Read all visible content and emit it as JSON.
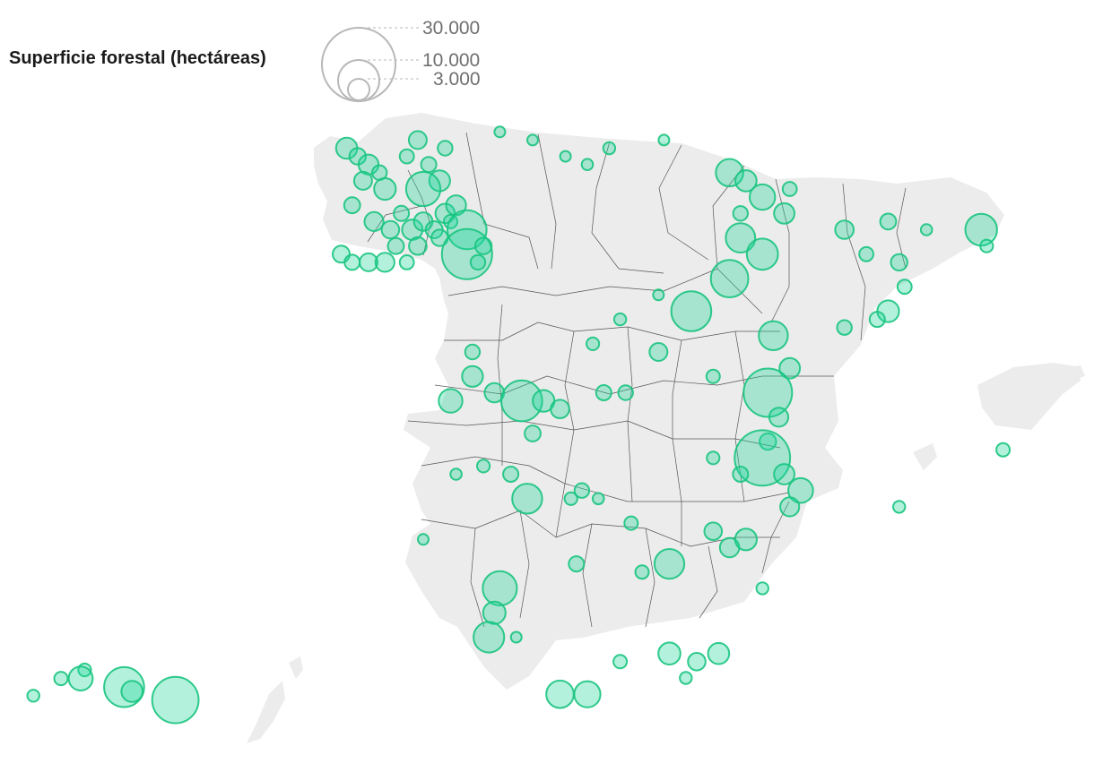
{
  "legend": {
    "title": "Superficie forestal (hectáreas)",
    "sizes": [
      {
        "value": 30000,
        "label": "30.000"
      },
      {
        "value": 10000,
        "label": "10.000"
      },
      {
        "value": 3000,
        "label": "3.000"
      }
    ]
  },
  "colors": {
    "bubble_fill": "#1fd69a",
    "bubble_stroke": "#19c47f",
    "land": "#ececec",
    "borders": "#555555"
  },
  "fires": [
    {
      "lon": -8.7,
      "lat": 43.3,
      "area": 2500
    },
    {
      "lon": -8.5,
      "lat": 43.2,
      "area": 1500
    },
    {
      "lon": -8.3,
      "lat": 43.1,
      "area": 2200
    },
    {
      "lon": -8.1,
      "lat": 43.0,
      "area": 1200
    },
    {
      "lon": -8.4,
      "lat": 42.9,
      "area": 1800
    },
    {
      "lon": -8.0,
      "lat": 42.8,
      "area": 2600
    },
    {
      "lon": -8.6,
      "lat": 42.6,
      "area": 1400
    },
    {
      "lon": -8.2,
      "lat": 42.4,
      "area": 2000
    },
    {
      "lon": -7.9,
      "lat": 42.3,
      "area": 1700
    },
    {
      "lon": -7.7,
      "lat": 42.5,
      "area": 1300
    },
    {
      "lon": -7.5,
      "lat": 42.3,
      "area": 2300
    },
    {
      "lon": -7.3,
      "lat": 42.4,
      "area": 1900
    },
    {
      "lon": -7.1,
      "lat": 42.3,
      "area": 1600
    },
    {
      "lon": -6.9,
      "lat": 42.5,
      "area": 2100
    },
    {
      "lon": -6.8,
      "lat": 42.4,
      "area": 1000
    },
    {
      "lon": -7.8,
      "lat": 42.1,
      "area": 1400
    },
    {
      "lon": -7.4,
      "lat": 42.1,
      "area": 1700
    },
    {
      "lon": -7.0,
      "lat": 42.2,
      "area": 1500
    },
    {
      "lon": -7.6,
      "lat": 43.2,
      "area": 1100
    },
    {
      "lon": -7.4,
      "lat": 43.4,
      "area": 1800
    },
    {
      "lon": -7.2,
      "lat": 43.1,
      "area": 1300
    },
    {
      "lon": -7.0,
      "lat": 42.9,
      "area": 2400
    },
    {
      "lon": -6.9,
      "lat": 43.3,
      "area": 1200
    },
    {
      "lon": -7.3,
      "lat": 42.8,
      "area": 6500
    },
    {
      "lon": -6.7,
      "lat": 42.6,
      "area": 2200
    },
    {
      "lon": -6.5,
      "lat": 42.3,
      "area": 8500
    },
    {
      "lon": -6.5,
      "lat": 42.0,
      "area": 14000
    },
    {
      "lon": -6.2,
      "lat": 42.1,
      "area": 1500
    },
    {
      "lon": -6.3,
      "lat": 41.9,
      "area": 1200
    },
    {
      "lon": -8.8,
      "lat": 42.0,
      "area": 1600
    },
    {
      "lon": -8.6,
      "lat": 41.9,
      "area": 1300
    },
    {
      "lon": -8.3,
      "lat": 41.9,
      "area": 1800
    },
    {
      "lon": -8.0,
      "lat": 41.9,
      "area": 2000
    },
    {
      "lon": -7.6,
      "lat": 41.9,
      "area": 1100
    },
    {
      "lon": -5.9,
      "lat": 43.5,
      "area": 500
    },
    {
      "lon": -5.3,
      "lat": 43.4,
      "area": 500
    },
    {
      "lon": -4.7,
      "lat": 43.2,
      "area": 600
    },
    {
      "lon": -4.3,
      "lat": 43.1,
      "area": 700
    },
    {
      "lon": -3.9,
      "lat": 43.3,
      "area": 800
    },
    {
      "lon": -2.9,
      "lat": 43.4,
      "area": 500
    },
    {
      "lon": -1.7,
      "lat": 43.0,
      "area": 4200
    },
    {
      "lon": -1.4,
      "lat": 42.9,
      "area": 2500
    },
    {
      "lon": -1.1,
      "lat": 42.7,
      "area": 3600
    },
    {
      "lon": -1.5,
      "lat": 42.5,
      "area": 1200
    },
    {
      "lon": -1.5,
      "lat": 42.2,
      "area": 4800
    },
    {
      "lon": -1.1,
      "lat": 42.0,
      "area": 5400
    },
    {
      "lon": -1.7,
      "lat": 41.7,
      "area": 7800
    },
    {
      "lon": -0.7,
      "lat": 42.5,
      "area": 2300
    },
    {
      "lon": 0.4,
      "lat": 42.3,
      "area": 1900
    },
    {
      "lon": 1.2,
      "lat": 42.4,
      "area": 1400
    },
    {
      "lon": 1.9,
      "lat": 42.3,
      "area": 700
    },
    {
      "lon": 2.9,
      "lat": 42.3,
      "area": 5600
    },
    {
      "lon": 3.0,
      "lat": 42.1,
      "area": 900
    },
    {
      "lon": 1.4,
      "lat": 41.9,
      "area": 1500
    },
    {
      "lon": 0.8,
      "lat": 42.0,
      "area": 1100
    },
    {
      "lon": 1.5,
      "lat": 41.6,
      "area": 1100
    },
    {
      "lon": 1.2,
      "lat": 41.3,
      "area": 2600
    },
    {
      "lon": 1.0,
      "lat": 41.2,
      "area": 1300
    },
    {
      "lon": 0.4,
      "lat": 41.1,
      "area": 1200
    },
    {
      "lon": -2.4,
      "lat": 41.3,
      "area": 8900
    },
    {
      "lon": -0.9,
      "lat": 41.0,
      "area": 4700
    },
    {
      "lon": -0.6,
      "lat": 40.6,
      "area": 2300
    },
    {
      "lon": -1.0,
      "lat": 40.3,
      "area": 13000
    },
    {
      "lon": -0.8,
      "lat": 40.0,
      "area": 2000
    },
    {
      "lon": -1.0,
      "lat": 39.7,
      "area": 1500
    },
    {
      "lon": -1.1,
      "lat": 39.5,
      "area": 17000
    },
    {
      "lon": -0.7,
      "lat": 39.3,
      "area": 2300
    },
    {
      "lon": -0.4,
      "lat": 39.1,
      "area": 3400
    },
    {
      "lon": -0.6,
      "lat": 38.9,
      "area": 2000
    },
    {
      "lon": -1.5,
      "lat": 39.3,
      "area": 1300
    },
    {
      "lon": -2.0,
      "lat": 39.5,
      "area": 900
    },
    {
      "lon": -2.0,
      "lat": 38.6,
      "area": 1700
    },
    {
      "lon": -1.7,
      "lat": 38.4,
      "area": 2100
    },
    {
      "lon": -1.4,
      "lat": 38.5,
      "area": 2600
    },
    {
      "lon": -1.1,
      "lat": 37.9,
      "area": 800
    },
    {
      "lon": -2.8,
      "lat": 38.2,
      "area": 4900
    },
    {
      "lon": -3.3,
      "lat": 38.1,
      "area": 1000
    },
    {
      "lon": -4.5,
      "lat": 38.2,
      "area": 1300
    },
    {
      "lon": -5.9,
      "lat": 37.9,
      "area": 6500
    },
    {
      "lon": -6.0,
      "lat": 37.6,
      "area": 2800
    },
    {
      "lon": -6.1,
      "lat": 37.3,
      "area": 5200
    },
    {
      "lon": -5.6,
      "lat": 37.3,
      "area": 600
    },
    {
      "lon": -3.7,
      "lat": 37.0,
      "area": 1000
    },
    {
      "lon": -2.8,
      "lat": 37.1,
      "area": 2700
    },
    {
      "lon": -2.3,
      "lat": 37.0,
      "area": 1700
    },
    {
      "lon": -1.9,
      "lat": 37.1,
      "area": 2500
    },
    {
      "lon": -4.8,
      "lat": 36.6,
      "area": 4200
    },
    {
      "lon": -4.3,
      "lat": 36.6,
      "area": 3800
    },
    {
      "lon": -2.5,
      "lat": 36.8,
      "area": 800
    },
    {
      "lon": -6.4,
      "lat": 40.5,
      "area": 2400
    },
    {
      "lon": -6.0,
      "lat": 40.3,
      "area": 2100
    },
    {
      "lon": -5.5,
      "lat": 40.2,
      "area": 9300
    },
    {
      "lon": -5.1,
      "lat": 40.2,
      "area": 2600
    },
    {
      "lon": -4.8,
      "lat": 40.1,
      "area": 1900
    },
    {
      "lon": -5.3,
      "lat": 39.8,
      "area": 1400
    },
    {
      "lon": -6.2,
      "lat": 39.4,
      "area": 900
    },
    {
      "lon": -5.7,
      "lat": 39.3,
      "area": 1300
    },
    {
      "lon": -5.4,
      "lat": 39.0,
      "area": 5000
    },
    {
      "lon": -4.6,
      "lat": 39.0,
      "area": 900
    },
    {
      "lon": -4.4,
      "lat": 39.1,
      "area": 1200
    },
    {
      "lon": -6.8,
      "lat": 40.2,
      "area": 3100
    },
    {
      "lon": -6.4,
      "lat": 40.8,
      "area": 1200
    },
    {
      "lon": -6.7,
      "lat": 39.3,
      "area": 700
    },
    {
      "lon": -3.5,
      "lat": 38.7,
      "area": 1000
    },
    {
      "lon": -3.0,
      "lat": 40.8,
      "area": 1800
    },
    {
      "lon": -2.0,
      "lat": 40.5,
      "area": 1000
    },
    {
      "lon": -0.6,
      "lat": 42.8,
      "area": 1100
    },
    {
      "lon": -3.7,
      "lat": 41.2,
      "area": 800
    },
    {
      "lon": -4.2,
      "lat": 40.9,
      "area": 900
    },
    {
      "lon": -4.0,
      "lat": 40.3,
      "area": 1300
    },
    {
      "lon": -3.6,
      "lat": 40.3,
      "area": 1200
    },
    {
      "lon": -3.0,
      "lat": 41.5,
      "area": 600
    },
    {
      "lon": -4.1,
      "lat": 39.0,
      "area": 700
    },
    {
      "lon": -7.3,
      "lat": 38.5,
      "area": 600
    },
    {
      "lon": 3.3,
      "lat": 39.6,
      "area": 1000
    },
    {
      "lon": 1.4,
      "lat": 38.9,
      "area": 800
    },
    {
      "lon": -16.6,
      "lat": 28.3,
      "area": 900
    },
    {
      "lon": -16.7,
      "lat": 28.1,
      "area": 3200
    },
    {
      "lon": -17.2,
      "lat": 28.1,
      "area": 1000
    },
    {
      "lon": -15.6,
      "lat": 27.9,
      "area": 8900
    },
    {
      "lon": -15.4,
      "lat": 27.8,
      "area": 2500
    },
    {
      "lon": -14.3,
      "lat": 27.6,
      "area": 12000
    },
    {
      "lon": -17.9,
      "lat": 27.7,
      "area": 800
    }
  ]
}
